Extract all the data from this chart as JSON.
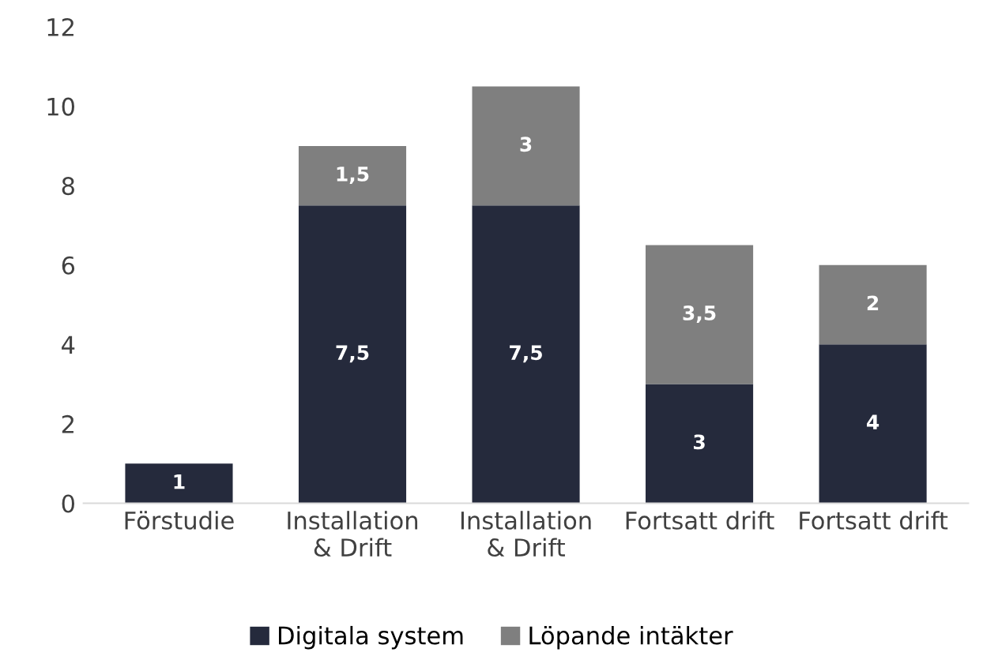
{
  "chart_data": {
    "type": "bar",
    "stacked": true,
    "categories": [
      "Förstudie",
      "Installation\n& Drift",
      "Installation\n& Drift",
      "Fortsatt drift",
      "Fortsatt drift"
    ],
    "series": [
      {
        "name": "Digitala system",
        "color": "#252a3c",
        "values": [
          1,
          7.5,
          7.5,
          3,
          4
        ],
        "value_labels": [
          "1",
          "7,5",
          "7,5",
          "3",
          "4"
        ]
      },
      {
        "name": "Löpande intäkter",
        "color": "#7f7f7f",
        "values": [
          null,
          1.5,
          3,
          3.5,
          2
        ],
        "value_labels": [
          null,
          "1,5",
          "3",
          "3,5",
          "2"
        ]
      }
    ],
    "ylim": [
      0,
      12
    ],
    "yticks": [
      0,
      2,
      4,
      6,
      8,
      10,
      12
    ],
    "grid": false,
    "legend": "bottom"
  }
}
